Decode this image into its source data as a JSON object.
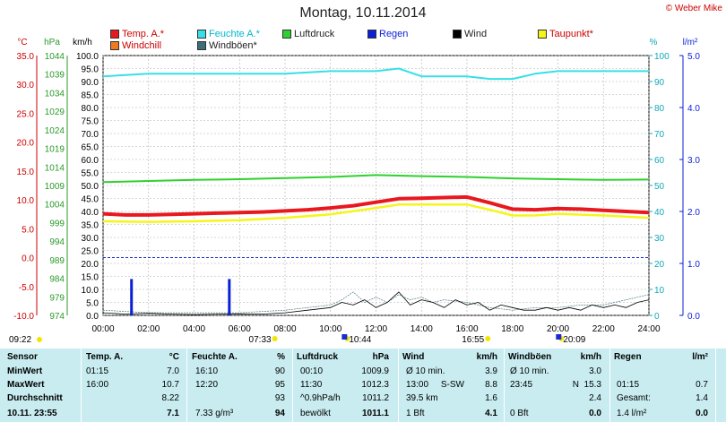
{
  "title": "Montag, 10.11.2014",
  "copyright": "© Weber Mike",
  "legend": [
    {
      "label": "Temp. A.*",
      "color": "#e8191e"
    },
    {
      "label": "Feuchte A.*",
      "color": "#36e0e6"
    },
    {
      "label": "Luftdruck",
      "color": "#2ed12e"
    },
    {
      "label": "Regen",
      "color": "#0a1fd6"
    },
    {
      "label": "Wind",
      "color": "#000000"
    },
    {
      "label": "Taupunkt*",
      "color": "#f5f51a"
    },
    {
      "label": "Windchill",
      "color": "#f07a1e"
    },
    {
      "label": "Windböen*",
      "color": "#3c6e78"
    }
  ],
  "axes_headers": {
    "temp": "°C",
    "pressure": "hPa",
    "wind": "km/h",
    "humidity": "%",
    "rain": "l/m²"
  },
  "time_markers": [
    {
      "label": "09:22",
      "x": "09:22",
      "row": 1
    },
    {
      "label": "07:33",
      "x": "07:33",
      "row": 1
    },
    {
      "label": "10:44",
      "x": "10:44",
      "row": 1
    },
    {
      "label": "16:55",
      "x": "16:55",
      "row": 1
    },
    {
      "label": "20:09",
      "x": "20:09",
      "row": 1
    }
  ],
  "chart_data": {
    "type": "line",
    "title": "Montag, 10.11.2014",
    "x_ticks": [
      "00:00",
      "02:00",
      "04:00",
      "06:00",
      "08:00",
      "10:00",
      "12:00",
      "14:00",
      "16:00",
      "18:00",
      "20:00",
      "22:00",
      "24:00"
    ],
    "xlim_hours": [
      0,
      24
    ],
    "y_axes": {
      "temp_c": {
        "min": -10.0,
        "max": 35.0,
        "ticks": [
          "35.0",
          "30.0",
          "25.0",
          "20.0",
          "15.0",
          "10.0",
          "5.0",
          "0.0",
          "-5.0",
          "-10.0"
        ]
      },
      "pressure_hpa": {
        "min": 974,
        "max": 1044,
        "ticks": [
          "1044",
          "1039",
          "1034",
          "1029",
          "1024",
          "1019",
          "1014",
          "1009",
          "1004",
          "999",
          "994",
          "989",
          "984",
          "979",
          "974"
        ]
      },
      "wind_kmh": {
        "min": 0.0,
        "max": 100.0,
        "ticks": [
          "100.0",
          "95.0",
          "90.0",
          "85.0",
          "80.0",
          "75.0",
          "70.0",
          "65.0",
          "60.0",
          "55.0",
          "50.0",
          "45.0",
          "40.0",
          "35.0",
          "30.0",
          "25.0",
          "20.0",
          "15.0",
          "10.0",
          "5.0",
          "0.0"
        ]
      },
      "humidity_pct": {
        "min": 0,
        "max": 100,
        "ticks": [
          "100",
          "90",
          "80",
          "70",
          "60",
          "50",
          "40",
          "30",
          "20",
          "10",
          "0"
        ]
      },
      "rain_lm2": {
        "min": 0.0,
        "max": 5.0,
        "ticks": [
          "5.0",
          "4.0",
          "3.0",
          "2.0",
          "1.0",
          "0.0"
        ]
      }
    },
    "series": [
      {
        "name": "Temp. A.*",
        "axis": "temp_c",
        "x": [
          0,
          1,
          2,
          3,
          4,
          5,
          6,
          7,
          8,
          9,
          10,
          11,
          12,
          13,
          14,
          15,
          16,
          17,
          18,
          19,
          20,
          21,
          22,
          23,
          24
        ],
        "values": [
          7.6,
          7.4,
          7.4,
          7.5,
          7.6,
          7.7,
          7.8,
          7.9,
          8.1,
          8.3,
          8.6,
          9.0,
          9.6,
          10.2,
          10.3,
          10.4,
          10.5,
          9.5,
          8.4,
          8.3,
          8.5,
          8.4,
          8.2,
          8.0,
          7.8
        ]
      },
      {
        "name": "Feuchte A.*",
        "axis": "humidity_pct",
        "x": [
          0,
          2,
          4,
          6,
          8,
          10,
          12,
          13,
          14,
          16,
          17,
          18,
          19,
          20,
          22,
          24
        ],
        "values": [
          92,
          93,
          93,
          93,
          93,
          94,
          94,
          95,
          92,
          92,
          91,
          91,
          93,
          94,
          94,
          94
        ]
      },
      {
        "name": "Luftdruck",
        "axis": "pressure_hpa",
        "x": [
          0,
          2,
          4,
          6,
          8,
          10,
          12,
          14,
          16,
          18,
          20,
          22,
          24
        ],
        "values": [
          1009.9,
          1010.2,
          1010.5,
          1010.7,
          1011.0,
          1011.3,
          1011.8,
          1011.5,
          1011.3,
          1010.9,
          1010.7,
          1010.5,
          1010.6
        ]
      },
      {
        "name": "Taupunkt*",
        "axis": "temp_c",
        "x": [
          0,
          2,
          4,
          6,
          8,
          10,
          12,
          13,
          14,
          16,
          17,
          18,
          19,
          20,
          22,
          24
        ],
        "values": [
          6.3,
          6.2,
          6.3,
          6.5,
          6.9,
          7.5,
          8.6,
          9.2,
          9.2,
          9.2,
          8.3,
          7.3,
          7.3,
          7.6,
          7.3,
          6.9
        ]
      },
      {
        "name": "Regen",
        "axis": "rain_lm2",
        "type": "bar",
        "x": [
          1.25,
          5.55
        ],
        "values": [
          0.7,
          0.7
        ]
      },
      {
        "name": "Wind",
        "axis": "wind_kmh",
        "x": [
          0,
          1,
          2,
          3,
          4,
          5,
          6,
          7,
          8,
          9,
          10,
          10.5,
          11,
          11.5,
          12,
          12.5,
          13,
          13.5,
          14,
          14.5,
          15,
          15.5,
          16,
          16.5,
          17,
          17.5,
          18,
          18.5,
          19,
          19.5,
          20,
          20.5,
          21,
          21.5,
          22,
          22.5,
          23,
          23.5,
          24
        ],
        "values": [
          1,
          0.5,
          0.8,
          0.5,
          0.3,
          0.5,
          0.6,
          0.5,
          1,
          2,
          3,
          5,
          4,
          6,
          3,
          5,
          9,
          4,
          6,
          5,
          3,
          6,
          4,
          5,
          2,
          4,
          3,
          2,
          2,
          3,
          2,
          3,
          2,
          4,
          3,
          4,
          3,
          5,
          6
        ]
      },
      {
        "name": "Windböen*",
        "axis": "wind_kmh",
        "x": [
          0,
          2,
          4,
          6,
          8,
          10,
          10.5,
          11,
          11.5,
          12,
          12.5,
          13,
          13.5,
          14,
          14.5,
          15,
          16,
          17,
          18,
          19,
          20,
          21,
          22,
          23,
          24
        ],
        "values": [
          2,
          1,
          1,
          1,
          2,
          4,
          6,
          9,
          5,
          7,
          5,
          8,
          6,
          7,
          5,
          6,
          5,
          3,
          2,
          3,
          3,
          4,
          4,
          6,
          8
        ]
      }
    ]
  },
  "stats": {
    "header": {
      "sensor": "Sensor",
      "temp": "Temp. A.",
      "temp_unit": "°C",
      "hum": "Feuchte A.",
      "hum_unit": "%",
      "press": "Luftdruck",
      "press_unit": "hPa",
      "wind": "Wind",
      "wind_unit": "km/h",
      "gust": "Windböen",
      "gust_unit": "km/h",
      "rain": "Regen",
      "rain_unit": "l/m²"
    },
    "rows": [
      {
        "label": "MinWert",
        "temp_time": "01:15",
        "temp_val": "7.0",
        "hum_time": "16:10",
        "hum_val": "90",
        "press_time": "00:10",
        "press_val": "1009.9",
        "wind_a": "Ø 10 min.",
        "wind_b": "",
        "wind_val": "3.9",
        "gust_a": "Ø 10 min.",
        "gust_val": "3.0",
        "rain_a": "",
        "rain_val": ""
      },
      {
        "label": "MaxWert",
        "temp_time": "16:00",
        "temp_val": "10.7",
        "hum_time": "12:20",
        "hum_val": "95",
        "press_time": "11:30",
        "press_val": "1012.3",
        "wind_a": "13:00",
        "wind_b": "S-SW",
        "wind_val": "8.8",
        "gust_a": "23:45",
        "gust_b": "N",
        "gust_val": "15.3",
        "rain_a": "01:15",
        "rain_val": "0.7"
      },
      {
        "label": "Durchschnitt",
        "temp_time": "",
        "temp_val": "8.22",
        "hum_time": "",
        "hum_val": "93",
        "press_time": "^0.9hPa/h",
        "press_val": "1011.2",
        "wind_a": "39.5 km",
        "wind_b": "",
        "wind_val": "1.6",
        "gust_a": "",
        "gust_val": "2.4",
        "rain_a": "Gesamt:",
        "rain_val": "1.4"
      },
      {
        "label": "10.11. 23:55",
        "temp_time": "",
        "temp_val": "7.1",
        "hum_time": "7.33 g/m³",
        "hum_val": "94",
        "press_time": "bewölkt",
        "press_val": "1011.1",
        "wind_a": "1 Bft",
        "wind_b": "",
        "wind_val": "4.1",
        "gust_a": "0 Bft",
        "gust_val": "0.0",
        "rain_a": "1.4 l/m²",
        "rain_val": "0.0"
      }
    ]
  }
}
